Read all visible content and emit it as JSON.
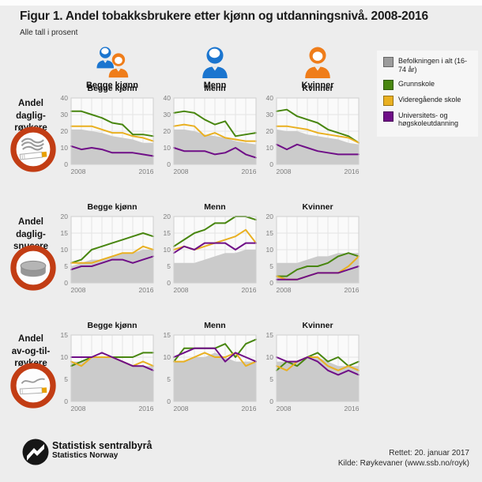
{
  "header": {
    "title": "Figur 1. Andel tobakksbrukere etter kjønn og utdanningsnivå. 2008-2016",
    "subtitle": "Alle tall i prosent",
    "columns": [
      {
        "label": "Begge kjønn",
        "icon": "both-genders-icon"
      },
      {
        "label": "Menn",
        "icon": "male-icon"
      },
      {
        "label": "Kvinner",
        "icon": "female-icon"
      }
    ]
  },
  "legend": {
    "items": [
      {
        "label": "Befolkningen i alt (16-74 år)",
        "color": "#9c9c9c"
      },
      {
        "label": "Grunnskole",
        "color": "#48860f"
      },
      {
        "label": "Videregående skole",
        "color": "#e9b021"
      },
      {
        "label": "Universitets- og høgskoleutdanning",
        "color": "#6f0e87"
      }
    ]
  },
  "chart_data": {
    "type": "line",
    "x": [
      2008,
      2009,
      2010,
      2011,
      2012,
      2013,
      2014,
      2015,
      2016
    ],
    "x_tick_labels": [
      "2008",
      "2016"
    ],
    "legend_position": "top-right",
    "grid": true,
    "rows": [
      {
        "label": "Andel dagligrøykere",
        "label_lines": [
          "Andel",
          "daglig-",
          "røykere"
        ],
        "icon": "cigarette-smoking-icon",
        "ylim": [
          0,
          40
        ],
        "yticks": [
          0,
          10,
          20,
          30,
          40
        ],
        "panels": [
          {
            "title": "Begge kjønn",
            "series": [
              {
                "name": "Befolkningen i alt (16-74 år)",
                "type": "area",
                "color": "#cbcbcb",
                "values": [
                  21,
                  21,
                  20,
                  19,
                  17,
                  16,
                  15,
                  13,
                  13
                ]
              },
              {
                "name": "Grunnskole",
                "type": "line",
                "color": "#48860f",
                "values": [
                  32,
                  32,
                  30,
                  28,
                  25,
                  24,
                  18,
                  18,
                  17
                ]
              },
              {
                "name": "Videregående skole",
                "type": "line",
                "color": "#e9b021",
                "values": [
                  23,
                  23,
                  23,
                  21,
                  19,
                  19,
                  17,
                  16,
                  14
                ]
              },
              {
                "name": "Universitets- og høgskoleutdanning",
                "type": "line",
                "color": "#6f0e87",
                "values": [
                  11,
                  9,
                  10,
                  9,
                  7,
                  7,
                  7,
                  6,
                  5
                ]
              }
            ]
          },
          {
            "title": "Menn",
            "series": [
              {
                "name": "Befolkningen i alt (16-74 år)",
                "type": "area",
                "color": "#cbcbcb",
                "values": [
                  21,
                  21,
                  20,
                  18,
                  17,
                  16,
                  14,
                  13,
                  12
                ]
              },
              {
                "name": "Grunnskole",
                "type": "line",
                "color": "#48860f",
                "values": [
                  31,
                  32,
                  31,
                  27,
                  24,
                  26,
                  17,
                  18,
                  19
                ]
              },
              {
                "name": "Videregående skole",
                "type": "line",
                "color": "#e9b021",
                "values": [
                  23,
                  24,
                  23,
                  17,
                  19,
                  16,
                  15,
                  14,
                  14
                ]
              },
              {
                "name": "Universitets- og høgskoleutdanning",
                "type": "line",
                "color": "#6f0e87",
                "values": [
                  10,
                  8,
                  8,
                  8,
                  6,
                  7,
                  10,
                  6,
                  4
                ]
              }
            ]
          },
          {
            "title": "Kvinner",
            "series": [
              {
                "name": "Befolkningen i alt (16-74 år)",
                "type": "area",
                "color": "#cbcbcb",
                "values": [
                  21,
                  20,
                  20,
                  18,
                  17,
                  16,
                  15,
                  13,
                  12
                ]
              },
              {
                "name": "Grunnskole",
                "type": "line",
                "color": "#48860f",
                "values": [
                  32,
                  33,
                  29,
                  27,
                  25,
                  21,
                  19,
                  17,
                  13
                ]
              },
              {
                "name": "Videregående skole",
                "type": "line",
                "color": "#e9b021",
                "values": [
                  23,
                  23,
                  22,
                  21,
                  19,
                  18,
                  17,
                  16,
                  13
                ]
              },
              {
                "name": "Universitets- og høgskoleutdanning",
                "type": "line",
                "color": "#6f0e87",
                "values": [
                  12,
                  9,
                  12,
                  10,
                  8,
                  7,
                  6,
                  6,
                  6
                ]
              }
            ]
          }
        ]
      },
      {
        "label": "Andel dagligsnusere",
        "label_lines": [
          "Andel",
          "daglig-",
          "snusere"
        ],
        "icon": "snus-box-icon",
        "ylim": [
          0,
          20
        ],
        "yticks": [
          0,
          5,
          10,
          15,
          20
        ],
        "panels": [
          {
            "title": "Begge kjønn",
            "series": [
              {
                "name": "Befolkningen i alt (16-74 år)",
                "type": "area",
                "color": "#cbcbcb",
                "values": [
                  5,
                  6,
                  7,
                  7,
                  8,
                  9,
                  9,
                  10,
                  10
                ]
              },
              {
                "name": "Grunnskole",
                "type": "line",
                "color": "#48860f",
                "values": [
                  6,
                  7,
                  10,
                  11,
                  12,
                  13,
                  14,
                  15,
                  14
                ]
              },
              {
                "name": "Videregående skole",
                "type": "line",
                "color": "#e9b021",
                "values": [
                  6,
                  6,
                  6,
                  7,
                  8,
                  9,
                  9,
                  11,
                  10
                ]
              },
              {
                "name": "Universitets- og høgskoleutdanning",
                "type": "line",
                "color": "#6f0e87",
                "values": [
                  4,
                  5,
                  5,
                  6,
                  7,
                  7,
                  6,
                  7,
                  8
                ]
              }
            ]
          },
          {
            "title": "Menn",
            "series": [
              {
                "name": "Befolkningen i alt (16-74 år)",
                "type": "area",
                "color": "#cbcbcb",
                "values": [
                  6,
                  6,
                  6,
                  7,
                  8,
                  9,
                  9,
                  10,
                  10
                ]
              },
              {
                "name": "Grunnskole",
                "type": "line",
                "color": "#48860f",
                "values": [
                  11,
                  13,
                  15,
                  16,
                  18,
                  18,
                  20,
                  20,
                  19
                ]
              },
              {
                "name": "Videregående skole",
                "type": "line",
                "color": "#e9b021",
                "values": [
                  10,
                  11,
                  10,
                  11,
                  12,
                  13,
                  14,
                  16,
                  12
                ]
              },
              {
                "name": "Universitets- og høgskoleutdanning",
                "type": "line",
                "color": "#6f0e87",
                "values": [
                  9,
                  11,
                  10,
                  12,
                  12,
                  12,
                  10,
                  12,
                  12
                ]
              }
            ]
          },
          {
            "title": "Kvinner",
            "series": [
              {
                "name": "Befolkningen i alt (16-74 år)",
                "type": "area",
                "color": "#cbcbcb",
                "values": [
                  6,
                  6,
                  6,
                  7,
                  8,
                  8,
                  9,
                  9,
                  9
                ]
              },
              {
                "name": "Grunnskole",
                "type": "line",
                "color": "#48860f",
                "values": [
                  2,
                  2,
                  4,
                  5,
                  5,
                  6,
                  8,
                  9,
                  8
                ]
              },
              {
                "name": "Videregående skole",
                "type": "line",
                "color": "#e9b021",
                "values": [
                  2,
                  1,
                  1,
                  2,
                  3,
                  3,
                  3,
                  5,
                  8
                ]
              },
              {
                "name": "Universitets- og høgskoleutdanning",
                "type": "line",
                "color": "#6f0e87",
                "values": [
                  1,
                  1,
                  1,
                  2,
                  3,
                  3,
                  3,
                  4,
                  5
                ]
              }
            ]
          }
        ]
      },
      {
        "label": "Andel av-og-til-røykere",
        "label_lines": [
          "Andel",
          "av-og-til-",
          "røykere"
        ],
        "icon": "occasional-cigarette-icon",
        "ylim": [
          0,
          15
        ],
        "yticks": [
          0,
          5,
          10,
          15
        ],
        "panels": [
          {
            "title": "Begge kjønn",
            "series": [
              {
                "name": "Befolkningen i alt (16-74 år)",
                "type": "area",
                "color": "#cbcbcb",
                "values": [
                  9,
                  9,
                  10,
                  10,
                  10,
                  9,
                  8,
                  8,
                  8
                ]
              },
              {
                "name": "Grunnskole",
                "type": "line",
                "color": "#48860f",
                "values": [
                  8,
                  9,
                  10,
                  10,
                  10,
                  10,
                  10,
                  11,
                  11
                ]
              },
              {
                "name": "Videregående skole",
                "type": "line",
                "color": "#e9b021",
                "values": [
                  9,
                  8,
                  10,
                  10,
                  10,
                  9,
                  8,
                  9,
                  8
                ]
              },
              {
                "name": "Universitets- og høgskoleutdanning",
                "type": "line",
                "color": "#6f0e87",
                "values": [
                  10,
                  10,
                  10,
                  11,
                  10,
                  9,
                  8,
                  8,
                  7
                ]
              }
            ]
          },
          {
            "title": "Menn",
            "series": [
              {
                "name": "Befolkningen i alt (16-74 år)",
                "type": "area",
                "color": "#cbcbcb",
                "values": [
                  9,
                  9,
                  10,
                  10,
                  11,
                  10,
                  9,
                  9,
                  9
                ]
              },
              {
                "name": "Grunnskole",
                "type": "line",
                "color": "#48860f",
                "values": [
                  9,
                  12,
                  12,
                  12,
                  12,
                  13,
                  10,
                  13,
                  14
                ]
              },
              {
                "name": "Videregående skole",
                "type": "line",
                "color": "#e9b021",
                "values": [
                  9,
                  9,
                  10,
                  11,
                  10,
                  10,
                  11,
                  8,
                  9
                ]
              },
              {
                "name": "Universitets- og høgskoleutdanning",
                "type": "line",
                "color": "#6f0e87",
                "values": [
                  10,
                  11,
                  12,
                  12,
                  12,
                  9,
                  11,
                  10,
                  9
                ]
              }
            ]
          },
          {
            "title": "Kvinner",
            "series": [
              {
                "name": "Befolkningen i alt (16-74 år)",
                "type": "area",
                "color": "#cbcbcb",
                "values": [
                  9,
                  9,
                  9,
                  10,
                  10,
                  9,
                  8,
                  8,
                  8
                ]
              },
              {
                "name": "Grunnskole",
                "type": "line",
                "color": "#48860f",
                "values": [
                  7,
                  9,
                  8,
                  10,
                  11,
                  9,
                  10,
                  8,
                  9
                ]
              },
              {
                "name": "Videregående skole",
                "type": "line",
                "color": "#e9b021",
                "values": [
                  8,
                  7,
                  9,
                  10,
                  10,
                  8,
                  7,
                  8,
                  7
                ]
              },
              {
                "name": "Universitets- og høgskoleutdanning",
                "type": "line",
                "color": "#6f0e87",
                "values": [
                  10,
                  9,
                  9,
                  10,
                  9,
                  7,
                  6,
                  7,
                  6
                ]
              }
            ]
          }
        ]
      }
    ]
  },
  "footer": {
    "org_name": "Statistisk sentralbyrå",
    "org_name_en": "Statistics Norway",
    "revised": "Rettet: 20. januar 2017",
    "source": "Kilde: Røykevaner (www.ssb.no/royk)",
    "logo_icon": "ssb-logo"
  },
  "colors": {
    "page_background": "#ededed",
    "plot_background": "#fafafa",
    "icon_ring_red": "#c23d14",
    "male_blue": "#1b75cf",
    "female_orange": "#ef7d1a"
  }
}
